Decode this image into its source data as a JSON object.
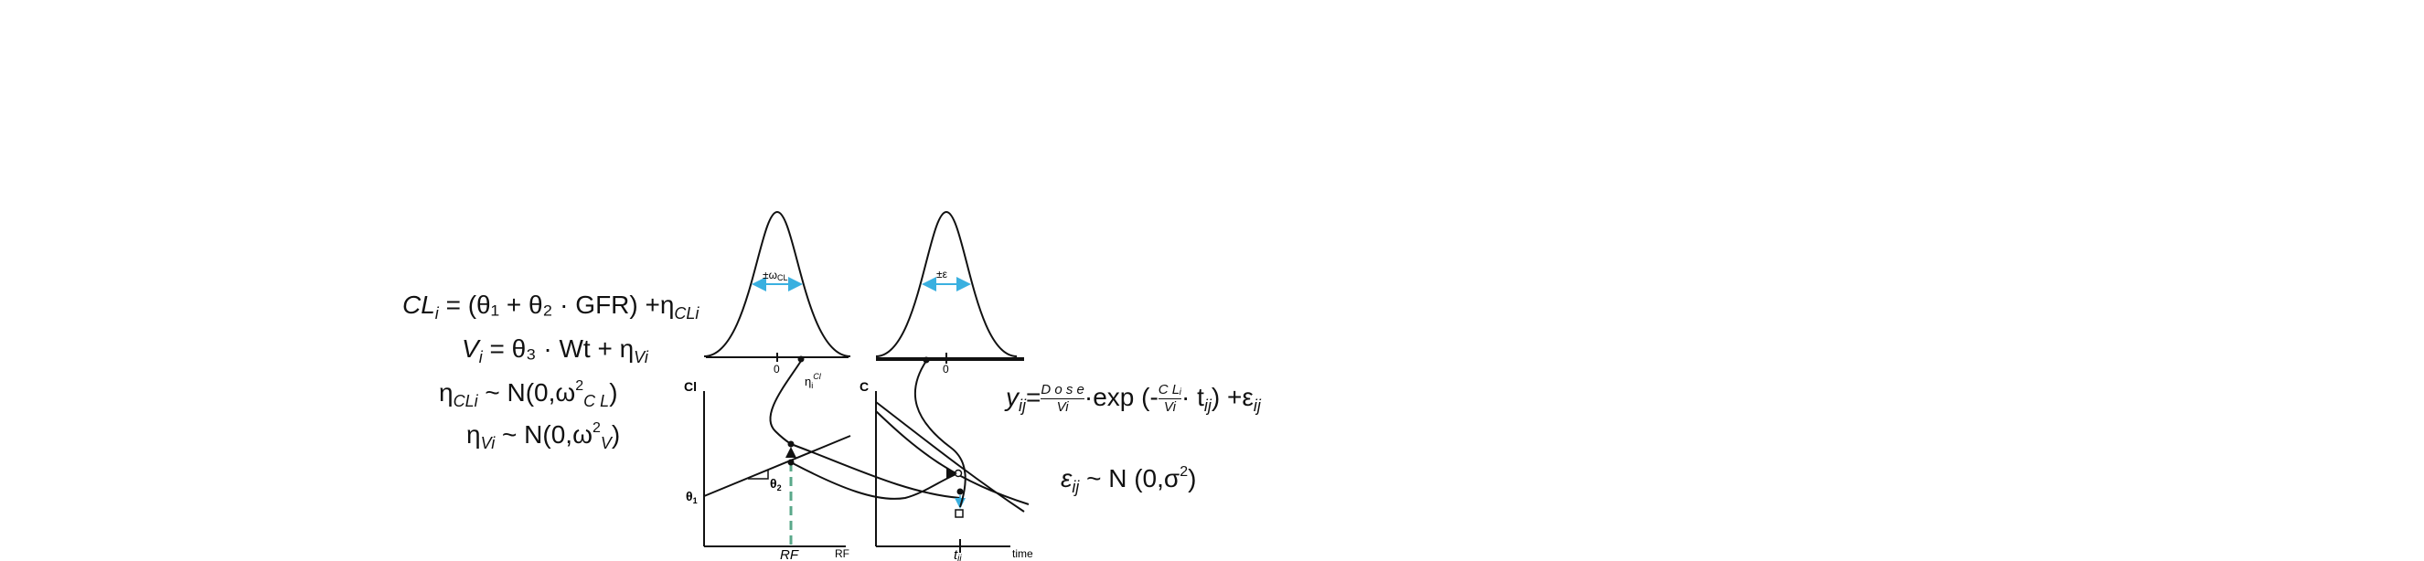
{
  "left_equations": {
    "cl": {
      "lhs": "CL",
      "sub": "i",
      "rhs": "= (θ₁ + θ₂ · GFR) +η",
      "eta_sub": "CLi"
    },
    "v": {
      "lhs": "V",
      "sub": "i",
      "rhs": "= θ₃ · Wt + η",
      "eta_sub": "Vi"
    },
    "eta_cl": {
      "lhs": "η",
      "sub": "CLi",
      "rhs": "~ N(0,ω",
      "sq": "2",
      "w_sub": "C L",
      "close": ")"
    },
    "eta_v": {
      "lhs": "η",
      "sub": "Vi",
      "rhs": "~ N(0,ω",
      "sq": "2",
      "w_sub": "V",
      "close": ")"
    }
  },
  "right_equations": {
    "model": {
      "lhs": "y",
      "lhs_sub": "ij",
      "eq": "=",
      "frac_num": "D o s e",
      "frac_den": "Vi",
      "exp": "·exp  (-",
      "frac2_num": "C Lᵢ",
      "frac2_den": "Vi",
      "t": "· t",
      "t_sub": "ij",
      "tail": ")  +ε",
      "tail_sub": "ij"
    },
    "resid": {
      "lhs": "ε",
      "lhs_sub": "ij",
      "rhs": "~  N (0,σ",
      "sq": "2",
      "close": ")"
    }
  },
  "dist_left": {
    "spread_label": "±ω",
    "spread_sub": "CL",
    "zero": "0"
  },
  "dist_right": {
    "spread_label": "±ε",
    "zero": "0"
  },
  "plot_left": {
    "y_label": "Cl",
    "x_label": "RF",
    "x_mark": "RF",
    "theta1": "θ",
    "theta1_sub": "1",
    "theta2": "θ",
    "theta2_sub": "2",
    "eta_label": "η",
    "eta_sub": "i",
    "eta_sup": "Cl"
  },
  "plot_right": {
    "y_label": "C",
    "x_label": "time",
    "x_mark": "t",
    "x_mark_sub": "ij"
  },
  "colors": {
    "ink": "#111111",
    "accent": "#3ab0e0",
    "dash": "#5aa88a"
  }
}
